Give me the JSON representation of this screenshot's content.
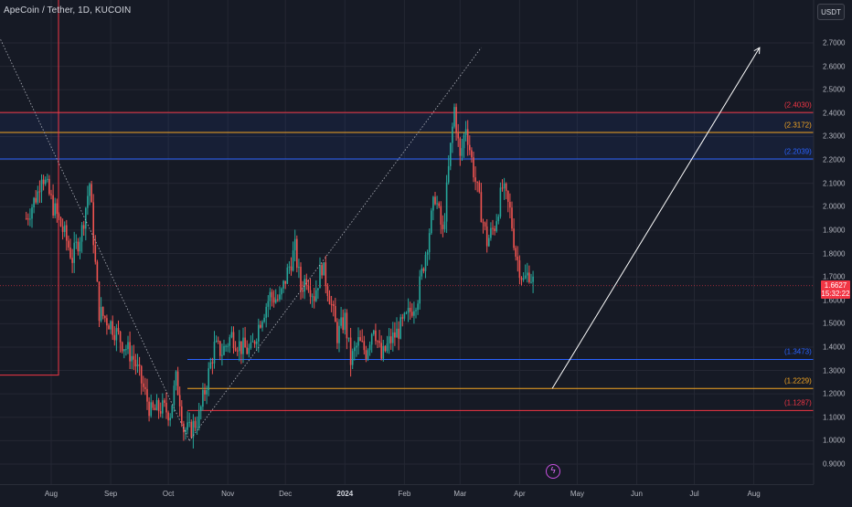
{
  "header": {
    "symbol_title": "ApeCoin / Tether, 1D, KUCOIN",
    "currency_button": "USDT"
  },
  "colors": {
    "background": "#161a25",
    "grid": "#242733",
    "up": "#26a69a",
    "down": "#ef5350",
    "red_level": "#f23645",
    "orange_level": "#f5a623",
    "blue_level": "#2962ff"
  },
  "current_price": {
    "value": "1.6627",
    "countdown": "15:32:22"
  },
  "levels": [
    {
      "label": "(2.4030)",
      "value": 2.403,
      "color": "#f23645"
    },
    {
      "label": "(2.3172)",
      "value": 2.3172,
      "color": "#f5a623"
    },
    {
      "label": "(2.2039)",
      "value": 2.2039,
      "color": "#2962ff"
    },
    {
      "label": "(1.3473)",
      "value": 1.3473,
      "color": "#2962ff"
    },
    {
      "label": "(1.2229)",
      "value": 1.2229,
      "color": "#f5a623"
    },
    {
      "label": "(1.1287)",
      "value": 1.1287,
      "color": "#f23645"
    }
  ],
  "chart_data": {
    "type": "candlestick",
    "title": "ApeCoin / Tether, 1D, KUCOIN",
    "ylim": [
      0.86,
      2.78
    ],
    "y_ticks": [
      "2.7000",
      "2.6000",
      "2.5000",
      "2.4000",
      "2.3000",
      "2.2000",
      "2.1000",
      "2.0000",
      "1.9000",
      "1.8000",
      "1.7000",
      "1.6000",
      "1.5000",
      "1.4000",
      "1.3000",
      "1.2000",
      "1.1000",
      "1.0000",
      "0.9000"
    ],
    "x_ticks": [
      "Aug",
      "Sep",
      "Oct",
      "Nov",
      "Dec",
      "2024",
      "Feb",
      "Mar",
      "Apr",
      "May",
      "Jun",
      "Jul",
      "Aug"
    ],
    "grid": true,
    "series": [
      {
        "name": "APEUSDT",
        "price_path": [
          [
            "2023-07-19",
            1.95
          ],
          [
            "2023-07-25",
            2.06
          ],
          [
            "2023-07-27",
            2.15
          ],
          [
            "2023-08-02",
            2.0
          ],
          [
            "2023-08-08",
            1.88
          ],
          [
            "2023-08-12",
            1.78
          ],
          [
            "2023-08-17",
            1.9
          ],
          [
            "2023-08-21",
            2.1
          ],
          [
            "2023-08-24",
            1.75
          ],
          [
            "2023-08-26",
            1.55
          ],
          [
            "2023-09-01",
            1.5
          ],
          [
            "2023-09-07",
            1.42
          ],
          [
            "2023-09-13",
            1.35
          ],
          [
            "2023-09-17",
            1.25
          ],
          [
            "2023-09-22",
            1.12
          ],
          [
            "2023-09-27",
            1.14
          ],
          [
            "2023-10-02",
            1.12
          ],
          [
            "2023-10-05",
            1.26
          ],
          [
            "2023-10-07",
            1.18
          ],
          [
            "2023-10-09",
            1.05
          ],
          [
            "2023-10-12",
            1.04
          ],
          [
            "2023-10-17",
            1.1
          ],
          [
            "2023-10-21",
            1.25
          ],
          [
            "2023-10-25",
            1.4
          ],
          [
            "2023-10-29",
            1.38
          ],
          [
            "2023-11-03",
            1.45
          ],
          [
            "2023-11-08",
            1.4
          ],
          [
            "2023-11-13",
            1.38
          ],
          [
            "2023-11-18",
            1.52
          ],
          [
            "2023-11-23",
            1.62
          ],
          [
            "2023-11-28",
            1.6
          ],
          [
            "2023-12-02",
            1.72
          ],
          [
            "2023-12-06",
            1.82
          ],
          [
            "2023-12-09",
            1.65
          ],
          [
            "2023-12-12",
            1.7
          ],
          [
            "2023-12-16",
            1.62
          ],
          [
            "2023-12-20",
            1.75
          ],
          [
            "2023-12-24",
            1.62
          ],
          [
            "2023-12-28",
            1.45
          ],
          [
            "2024-01-01",
            1.52
          ],
          [
            "2024-01-04",
            1.34
          ],
          [
            "2024-01-08",
            1.42
          ],
          [
            "2024-01-12",
            1.38
          ],
          [
            "2024-01-16",
            1.5
          ],
          [
            "2024-01-20",
            1.35
          ],
          [
            "2024-01-24",
            1.42
          ],
          [
            "2024-01-28",
            1.46
          ],
          [
            "2024-02-02",
            1.52
          ],
          [
            "2024-02-08",
            1.62
          ],
          [
            "2024-02-13",
            1.85
          ],
          [
            "2024-02-17",
            2.05
          ],
          [
            "2024-02-21",
            1.88
          ],
          [
            "2024-02-25",
            2.25
          ],
          [
            "2024-02-27",
            2.42
          ],
          [
            "2024-03-01",
            2.2
          ],
          [
            "2024-03-04",
            2.35
          ],
          [
            "2024-03-07",
            2.2
          ],
          [
            "2024-03-11",
            2.02
          ],
          [
            "2024-03-15",
            1.85
          ],
          [
            "2024-03-19",
            1.92
          ],
          [
            "2024-03-23",
            2.08
          ],
          [
            "2024-03-27",
            1.98
          ],
          [
            "2024-03-30",
            1.8
          ],
          [
            "2024-04-03",
            1.68
          ],
          [
            "2024-04-06",
            1.72
          ],
          [
            "2024-04-09",
            1.66
          ]
        ]
      }
    ],
    "drawings": {
      "horizontal_levels": [
        2.403,
        2.3172,
        2.2039,
        1.3473,
        1.2229,
        1.1287
      ],
      "projection_arrow": {
        "from": [
          "2024-04-18",
          1.2229
        ],
        "to": [
          "2024-08-04",
          2.68
        ]
      },
      "dotted_lines": [
        {
          "from": [
            "2023-06-25",
            2.9
          ],
          "to": [
            "2023-10-12",
            1.0
          ]
        },
        {
          "from": [
            "2023-10-12",
            1.0
          ],
          "to": [
            "2024-03-12",
            2.68
          ]
        }
      ]
    }
  }
}
